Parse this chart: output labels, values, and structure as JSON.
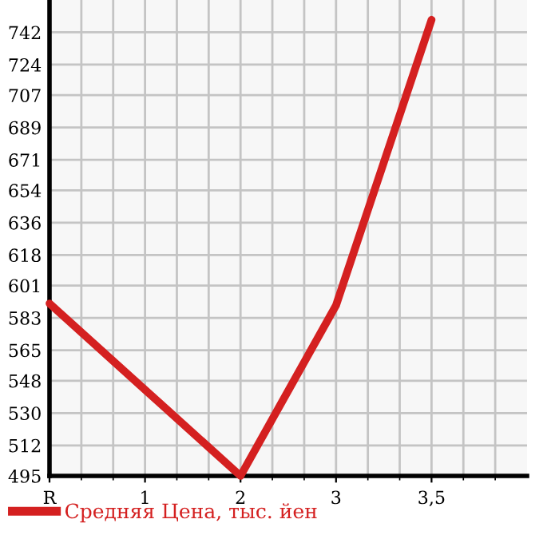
{
  "chart_data": {
    "type": "line",
    "categories": [
      "R",
      "1",
      "2",
      "3",
      "3,5"
    ],
    "series": [
      {
        "name": "Средняя Цена, тыс. йен",
        "color": "#d42020",
        "values": [
          591,
          543,
          495,
          590,
          749
        ]
      }
    ],
    "ylim": [
      495,
      760
    ],
    "yticks": [
      495,
      512,
      530,
      548,
      565,
      583,
      601,
      618,
      636,
      654,
      671,
      689,
      707,
      724,
      742
    ],
    "grid": true,
    "legend": "bottom left",
    "marker": "none",
    "line_style": "solid"
  }
}
